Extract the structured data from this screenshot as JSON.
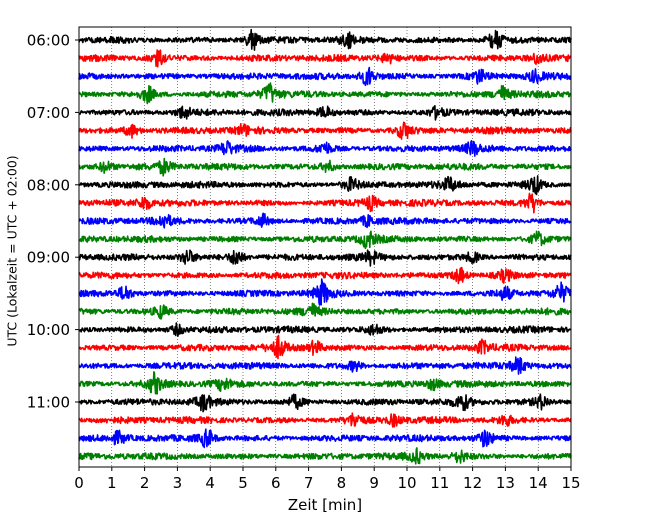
{
  "chart_data": {
    "type": "line",
    "title": "",
    "xlabel": "Zeit  [min]",
    "ylabel": "UTC (Lokalzeit = UTC + 02:00)",
    "xlim": [
      0,
      15
    ],
    "xticks": [
      "0",
      "1",
      "2",
      "3",
      "4",
      "5",
      "6",
      "7",
      "8",
      "9",
      "10",
      "11",
      "12",
      "13",
      "14",
      "15"
    ],
    "ytick_labels": [
      "06:00",
      "07:00",
      "08:00",
      "09:00",
      "10:00",
      "11:00"
    ],
    "ytick_rows": [
      0,
      4,
      8,
      12,
      16,
      20
    ],
    "grid": "vertical dotted",
    "trace_interval_minutes": 15,
    "trace_count": 24,
    "color_cycle": [
      "#000000",
      "#ff0000",
      "#0000ff",
      "#008000"
    ],
    "traces": [
      {
        "start": "06:00",
        "color": "#000000",
        "events": [
          [
            5.3,
            1.6
          ],
          [
            12.7,
            2.0
          ],
          [
            8.2,
            1.0
          ]
        ]
      },
      {
        "start": "06:15",
        "color": "#ff0000",
        "events": [
          [
            2.4,
            1.3
          ],
          [
            9.4,
            0.8
          ],
          [
            14.0,
            0.9
          ]
        ]
      },
      {
        "start": "06:30",
        "color": "#0000ff",
        "events": [
          [
            8.8,
            1.5
          ],
          [
            12.2,
            1.0
          ],
          [
            13.9,
            0.9
          ]
        ]
      },
      {
        "start": "06:45",
        "color": "#008000",
        "events": [
          [
            2.1,
            1.2
          ],
          [
            5.8,
            1.6
          ],
          [
            12.9,
            1.2
          ]
        ]
      },
      {
        "start": "07:00",
        "color": "#000000",
        "events": [
          [
            3.2,
            1.0
          ],
          [
            7.5,
            0.9
          ],
          [
            10.9,
            0.8
          ]
        ]
      },
      {
        "start": "07:15",
        "color": "#ff0000",
        "events": [
          [
            1.6,
            1.0
          ],
          [
            5.0,
            0.8
          ],
          [
            9.9,
            1.4
          ]
        ]
      },
      {
        "start": "07:30",
        "color": "#0000ff",
        "events": [
          [
            4.5,
            1.0
          ],
          [
            7.5,
            0.9
          ],
          [
            12.0,
            1.0
          ]
        ]
      },
      {
        "start": "07:45",
        "color": "#008000",
        "events": [
          [
            0.8,
            0.9
          ],
          [
            2.6,
            1.1
          ],
          [
            7.6,
            0.8
          ]
        ]
      },
      {
        "start": "08:00",
        "color": "#000000",
        "events": [
          [
            8.3,
            1.0
          ],
          [
            11.3,
            1.0
          ],
          [
            13.9,
            1.5
          ]
        ]
      },
      {
        "start": "08:15",
        "color": "#ff0000",
        "events": [
          [
            2.0,
            1.0
          ],
          [
            8.9,
            1.0
          ],
          [
            13.8,
            1.6
          ]
        ]
      },
      {
        "start": "08:30",
        "color": "#0000ff",
        "events": [
          [
            2.6,
            1.0
          ],
          [
            5.6,
            1.0
          ],
          [
            8.8,
            0.8
          ]
        ]
      },
      {
        "start": "08:45",
        "color": "#008000",
        "events": [
          [
            8.8,
            1.3
          ],
          [
            14.0,
            1.0
          ]
        ]
      },
      {
        "start": "09:00",
        "color": "#000000",
        "events": [
          [
            3.3,
            1.2
          ],
          [
            4.8,
            1.4
          ],
          [
            8.9,
            0.9
          ],
          [
            12.0,
            0.9
          ]
        ]
      },
      {
        "start": "09:15",
        "color": "#ff0000",
        "events": [
          [
            11.6,
            1.3
          ],
          [
            13.0,
            0.9
          ]
        ]
      },
      {
        "start": "09:30",
        "color": "#0000ff",
        "events": [
          [
            1.4,
            1.2
          ],
          [
            7.4,
            1.9
          ],
          [
            13.0,
            1.0
          ],
          [
            14.7,
            1.3
          ]
        ]
      },
      {
        "start": "09:45",
        "color": "#008000",
        "events": [
          [
            2.5,
            1.0
          ],
          [
            7.1,
            1.0
          ]
        ]
      },
      {
        "start": "10:00",
        "color": "#000000",
        "events": [
          [
            3.0,
            0.8
          ],
          [
            9.0,
            0.8
          ]
        ]
      },
      {
        "start": "10:15",
        "color": "#ff0000",
        "events": [
          [
            6.1,
            1.6
          ],
          [
            7.2,
            1.1
          ],
          [
            12.3,
            1.0
          ]
        ]
      },
      {
        "start": "10:30",
        "color": "#0000ff",
        "events": [
          [
            13.4,
            1.3
          ],
          [
            8.4,
            0.8
          ]
        ]
      },
      {
        "start": "10:45",
        "color": "#008000",
        "events": [
          [
            2.3,
            1.6
          ],
          [
            4.4,
            0.9
          ],
          [
            10.8,
            0.8
          ]
        ]
      },
      {
        "start": "11:00",
        "color": "#000000",
        "events": [
          [
            3.8,
            1.3
          ],
          [
            6.6,
            1.0
          ],
          [
            11.7,
            1.1
          ],
          [
            14.1,
            1.0
          ]
        ]
      },
      {
        "start": "11:15",
        "color": "#ff0000",
        "events": [
          [
            8.4,
            1.0
          ],
          [
            9.6,
            0.8
          ],
          [
            13.0,
            0.8
          ]
        ]
      },
      {
        "start": "11:30",
        "color": "#0000ff",
        "events": [
          [
            3.9,
            1.5
          ],
          [
            12.4,
            1.3
          ],
          [
            1.2,
            0.9
          ]
        ]
      },
      {
        "start": "11:45",
        "color": "#008000",
        "events": [
          [
            10.3,
            1.0
          ],
          [
            11.6,
            0.9
          ]
        ]
      }
    ]
  }
}
